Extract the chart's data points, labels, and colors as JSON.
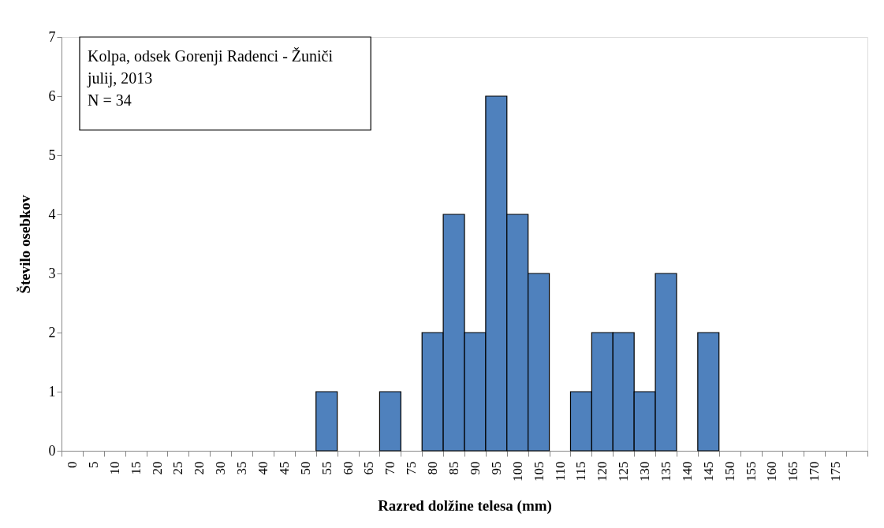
{
  "chart_data": {
    "type": "bar",
    "xlabel": "Razred dolžine telesa (mm)",
    "ylabel": "Število osebkov",
    "categories": [
      "0",
      "5",
      "10",
      "15",
      "20",
      "25",
      "20",
      "30",
      "35",
      "40",
      "45",
      "50",
      "55",
      "60",
      "65",
      "70",
      "75",
      "80",
      "85",
      "90",
      "95",
      "100",
      "105",
      "110",
      "115",
      "120",
      "125",
      "130",
      "135",
      "140",
      "145",
      "150",
      "155",
      "160",
      "165",
      "170",
      "175",
      null
    ],
    "values": [
      0,
      0,
      0,
      0,
      0,
      0,
      0,
      0,
      0,
      0,
      0,
      0,
      1,
      0,
      0,
      1,
      0,
      2,
      4,
      2,
      6,
      4,
      3,
      0,
      1,
      2,
      2,
      1,
      3,
      0,
      2,
      0,
      0,
      0,
      0,
      0,
      0,
      0
    ],
    "color": "#4f81bd",
    "ylim": [
      0,
      7
    ],
    "yticks": [
      0,
      1,
      2,
      3,
      4,
      5,
      6,
      7
    ],
    "grid": false,
    "annotations": [
      "Kolpa, odsek Gorenji Radenci - Žuniči",
      "julij, 2013",
      "N = 34"
    ]
  }
}
